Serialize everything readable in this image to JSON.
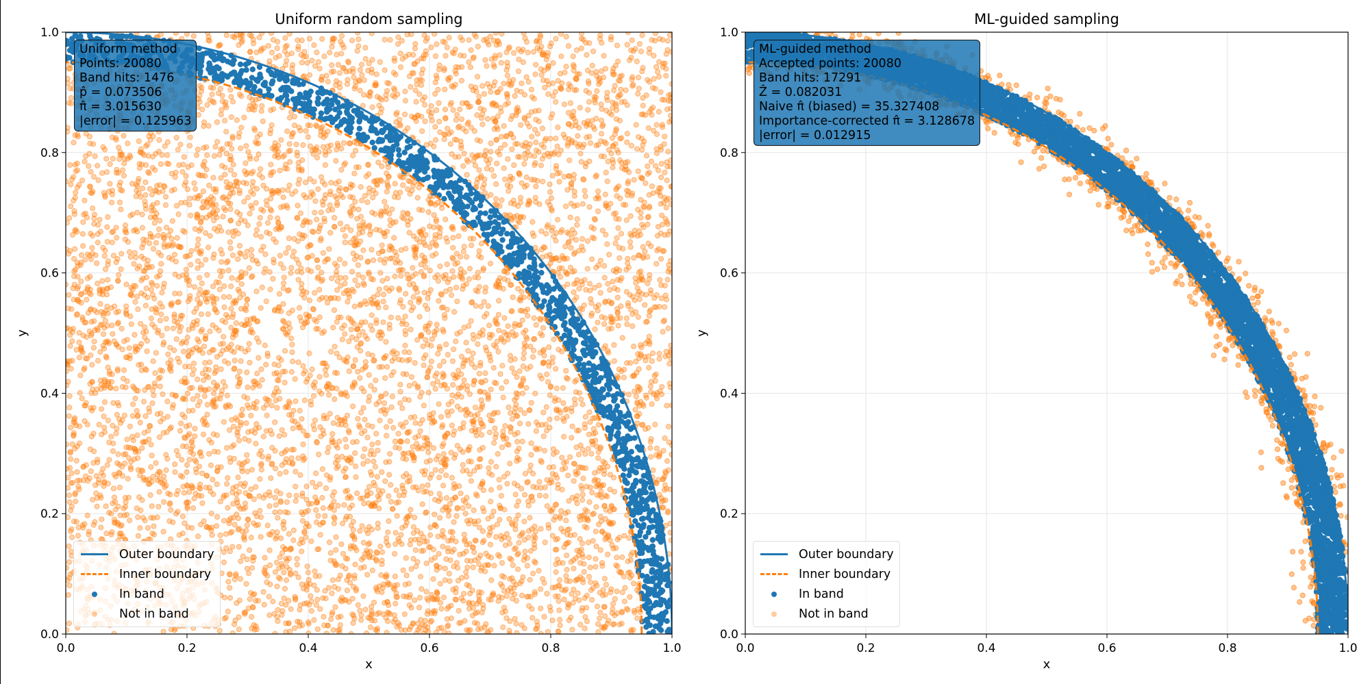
{
  "colors": {
    "in_band": "#1f77b4",
    "not_in_band": "#ff7f0e",
    "grid": "#e6e6e6"
  },
  "chart_data": [
    {
      "type": "scatter",
      "title": "Uniform random sampling",
      "xlabel": "x",
      "ylabel": "y",
      "xlim": [
        0,
        1
      ],
      "ylim": [
        0,
        1
      ],
      "xticks": [
        "0.0",
        "0.2",
        "0.4",
        "0.6",
        "0.8",
        "1.0"
      ],
      "yticks": [
        "0.0",
        "0.2",
        "0.4",
        "0.6",
        "0.8",
        "1.0"
      ],
      "grid": true,
      "outer_radius": 1.0,
      "inner_radius": 0.95,
      "sampling": "uniform",
      "total_points": 20080,
      "band_hits": 1476,
      "legend_position": "lower-left",
      "legend": [
        "Outer boundary",
        "Inner boundary",
        "In band",
        "Not in band"
      ],
      "stats_box": [
        "Uniform method",
        "Points: 20080",
        "Band hits: 1476",
        "p̂ = 0.073506",
        "π̂ = 3.015630",
        "|error| = 0.125963"
      ]
    },
    {
      "type": "scatter",
      "title": "ML-guided sampling",
      "xlabel": "x",
      "ylabel": "y",
      "xlim": [
        0,
        1
      ],
      "ylim": [
        0,
        1
      ],
      "xticks": [
        "0.0",
        "0.2",
        "0.4",
        "0.6",
        "0.8",
        "1.0"
      ],
      "yticks": [
        "0.0",
        "0.2",
        "0.4",
        "0.6",
        "0.8",
        "1.0"
      ],
      "grid": true,
      "outer_radius": 1.0,
      "inner_radius": 0.95,
      "sampling": "ml-guided",
      "total_points": 20080,
      "band_hits": 17291,
      "legend_position": "lower-left",
      "legend": [
        "Outer boundary",
        "Inner boundary",
        "In band",
        "Not in band"
      ],
      "stats_box": [
        "ML-guided method",
        "Accepted points: 20080",
        "Band hits: 17291",
        "Ẑ = 0.082031",
        "Naive π̂ (biased) = 35.327408",
        "Importance-corrected π̂ = 3.128678",
        "|error| = 0.012915"
      ]
    }
  ]
}
